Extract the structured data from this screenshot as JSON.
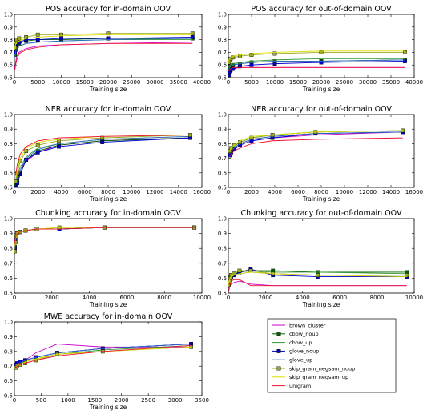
{
  "series_styles": [
    {
      "name": "brown_cluster",
      "color": "#cc00cc",
      "marker": "none"
    },
    {
      "name": "cbow_noup",
      "color": "#006600",
      "marker": "square"
    },
    {
      "name": "cbow_up",
      "color": "#339933",
      "marker": "none"
    },
    {
      "name": "glove_noup",
      "color": "#0000cc",
      "marker": "square"
    },
    {
      "name": "glove_up",
      "color": "#3366cc",
      "marker": "none"
    },
    {
      "name": "skip_gram_negsam_noup",
      "color": "#99aa22",
      "marker": "square"
    },
    {
      "name": "skip_gram_negsam_up",
      "color": "#dddd00",
      "marker": "none"
    },
    {
      "name": "unigram",
      "color": "#ee1133",
      "marker": "none"
    }
  ],
  "legend": {
    "placement": "bottom-right",
    "entries": [
      "brown_cluster",
      "cbow_noup",
      "cbow_up",
      "glove_noup",
      "glove_up",
      "skip_gram_negsam_noup",
      "skip_gram_negsam_up",
      "unigram"
    ]
  },
  "chart_data": [
    {
      "type": "line",
      "title": "POS accuracy for in-domain OOV",
      "xlabel": "Training size",
      "ylabel": "",
      "xlim": [
        0,
        40000
      ],
      "ylim": [
        0.5,
        1.0
      ],
      "xticks": [
        "0",
        "5000",
        "10000",
        "15000",
        "20000",
        "25000",
        "30000",
        "35000",
        "40000"
      ],
      "yticks": [
        "0.5",
        "0.6",
        "0.7",
        "0.8",
        "0.9",
        "1.0"
      ],
      "x": [
        100,
        250,
        500,
        1000,
        2500,
        5000,
        10000,
        20000,
        38000
      ],
      "series": [
        {
          "name": "brown_cluster",
          "values": [
            0.57,
            0.62,
            0.67,
            0.7,
            0.73,
            0.75,
            0.76,
            0.77,
            0.78
          ]
        },
        {
          "name": "cbow_noup",
          "values": [
            0.68,
            0.72,
            0.75,
            0.77,
            0.79,
            0.8,
            0.8,
            0.81,
            0.81
          ]
        },
        {
          "name": "cbow_up",
          "values": [
            0.66,
            0.7,
            0.73,
            0.75,
            0.77,
            0.78,
            0.79,
            0.8,
            0.8
          ]
        },
        {
          "name": "glove_noup",
          "values": [
            0.7,
            0.74,
            0.77,
            0.78,
            0.8,
            0.8,
            0.81,
            0.81,
            0.82
          ]
        },
        {
          "name": "glove_up",
          "values": [
            0.66,
            0.7,
            0.73,
            0.75,
            0.77,
            0.78,
            0.79,
            0.8,
            0.81
          ]
        },
        {
          "name": "skip_gram_negsam_noup",
          "values": [
            0.74,
            0.78,
            0.8,
            0.81,
            0.82,
            0.84,
            0.84,
            0.85,
            0.85
          ]
        },
        {
          "name": "skip_gram_negsam_up",
          "values": [
            0.72,
            0.76,
            0.78,
            0.79,
            0.81,
            0.82,
            0.83,
            0.84,
            0.84
          ]
        },
        {
          "name": "unigram",
          "values": [
            0.56,
            0.6,
            0.64,
            0.69,
            0.72,
            0.74,
            0.76,
            0.77,
            0.77
          ]
        }
      ]
    },
    {
      "type": "line",
      "title": "POS accuracy for out-of-domain OOV",
      "xlabel": "Training size",
      "ylabel": "",
      "xlim": [
        0,
        40000
      ],
      "ylim": [
        0.5,
        1.0
      ],
      "xticks": [
        "0",
        "5000",
        "10000",
        "15000",
        "20000",
        "25000",
        "30000",
        "35000",
        "40000"
      ],
      "yticks": [
        "0.5",
        "0.6",
        "0.7",
        "0.8",
        "0.9",
        "1.0"
      ],
      "x": [
        100,
        250,
        500,
        1000,
        2500,
        5000,
        10000,
        20000,
        38000
      ],
      "series": [
        {
          "name": "brown_cluster",
          "values": [
            0.54,
            0.55,
            0.56,
            0.57,
            0.58,
            0.58,
            0.58,
            0.58,
            0.58
          ]
        },
        {
          "name": "cbow_noup",
          "values": [
            0.57,
            0.58,
            0.59,
            0.6,
            0.61,
            0.62,
            0.63,
            0.63,
            0.64
          ]
        },
        {
          "name": "cbow_up",
          "values": [
            0.58,
            0.59,
            0.6,
            0.61,
            0.62,
            0.63,
            0.64,
            0.65,
            0.65
          ]
        },
        {
          "name": "glove_noup",
          "values": [
            0.52,
            0.55,
            0.56,
            0.57,
            0.59,
            0.6,
            0.61,
            0.62,
            0.63
          ]
        },
        {
          "name": "glove_up",
          "values": [
            0.56,
            0.58,
            0.59,
            0.6,
            0.61,
            0.62,
            0.63,
            0.63,
            0.64
          ]
        },
        {
          "name": "skip_gram_negsam_noup",
          "values": [
            0.62,
            0.64,
            0.65,
            0.66,
            0.67,
            0.68,
            0.69,
            0.7,
            0.7
          ]
        },
        {
          "name": "skip_gram_negsam_up",
          "values": [
            0.63,
            0.65,
            0.66,
            0.67,
            0.68,
            0.69,
            0.7,
            0.71,
            0.71
          ]
        },
        {
          "name": "unigram",
          "values": [
            0.55,
            0.56,
            0.57,
            0.58,
            0.58,
            0.58,
            0.58,
            0.58,
            0.58
          ]
        }
      ]
    },
    {
      "type": "line",
      "title": "NER accuracy for in-domain OOV",
      "xlabel": "Training size",
      "ylabel": "",
      "xlim": [
        0,
        16000
      ],
      "ylim": [
        0.5,
        1.0
      ],
      "xticks": [
        "0",
        "2000",
        "4000",
        "6000",
        "8000",
        "10000",
        "12000",
        "14000",
        "16000"
      ],
      "yticks": [
        "0.5",
        "0.6",
        "0.7",
        "0.8",
        "0.9",
        "1.0"
      ],
      "x": [
        100,
        250,
        500,
        1000,
        2000,
        3800,
        7500,
        15000
      ],
      "series": [
        {
          "name": "brown_cluster",
          "values": [
            0.54,
            0.58,
            0.62,
            0.68,
            0.74,
            0.79,
            0.82,
            0.84
          ]
        },
        {
          "name": "cbow_noup",
          "values": [
            0.52,
            0.55,
            0.6,
            0.69,
            0.75,
            0.79,
            0.82,
            0.84
          ]
        },
        {
          "name": "cbow_up",
          "values": [
            0.55,
            0.59,
            0.64,
            0.71,
            0.77,
            0.8,
            0.83,
            0.85
          ]
        },
        {
          "name": "glove_noup",
          "values": [
            0.5,
            0.53,
            0.59,
            0.69,
            0.74,
            0.78,
            0.81,
            0.84
          ]
        },
        {
          "name": "glove_up",
          "values": [
            0.53,
            0.57,
            0.62,
            0.7,
            0.76,
            0.8,
            0.83,
            0.85
          ]
        },
        {
          "name": "skip_gram_negsam_noup",
          "values": [
            0.54,
            0.6,
            0.68,
            0.75,
            0.79,
            0.82,
            0.84,
            0.86
          ]
        },
        {
          "name": "skip_gram_negsam_up",
          "values": [
            0.56,
            0.62,
            0.7,
            0.77,
            0.81,
            0.83,
            0.85,
            0.86
          ]
        },
        {
          "name": "unigram",
          "values": [
            0.58,
            0.66,
            0.73,
            0.78,
            0.82,
            0.84,
            0.85,
            0.86
          ]
        }
      ]
    },
    {
      "type": "line",
      "title": "NER accuracy for out-of-domain OOV",
      "xlabel": "Training size",
      "ylabel": "",
      "xlim": [
        0,
        16000
      ],
      "ylim": [
        0.5,
        1.0
      ],
      "xticks": [
        "0",
        "2000",
        "4000",
        "6000",
        "8000",
        "10000",
        "12000",
        "14000",
        "16000"
      ],
      "yticks": [
        "0.5",
        "0.6",
        "0.7",
        "0.8",
        "0.9",
        "1.0"
      ],
      "x": [
        100,
        250,
        500,
        1000,
        2000,
        3800,
        7500,
        15000
      ],
      "series": [
        {
          "name": "brown_cluster",
          "values": [
            0.72,
            0.74,
            0.76,
            0.79,
            0.82,
            0.84,
            0.86,
            0.88
          ]
        },
        {
          "name": "cbow_noup",
          "values": [
            0.73,
            0.75,
            0.77,
            0.8,
            0.83,
            0.85,
            0.87,
            0.88
          ]
        },
        {
          "name": "cbow_up",
          "values": [
            0.74,
            0.76,
            0.78,
            0.81,
            0.84,
            0.86,
            0.88,
            0.89
          ]
        },
        {
          "name": "glove_noup",
          "values": [
            0.72,
            0.74,
            0.76,
            0.79,
            0.82,
            0.84,
            0.87,
            0.88
          ]
        },
        {
          "name": "glove_up",
          "values": [
            0.73,
            0.75,
            0.77,
            0.8,
            0.83,
            0.85,
            0.87,
            0.88
          ]
        },
        {
          "name": "skip_gram_negsam_noup",
          "values": [
            0.75,
            0.77,
            0.79,
            0.81,
            0.84,
            0.86,
            0.88,
            0.89
          ]
        },
        {
          "name": "skip_gram_negsam_up",
          "values": [
            0.75,
            0.77,
            0.79,
            0.82,
            0.85,
            0.86,
            0.88,
            0.89
          ]
        },
        {
          "name": "unigram",
          "values": [
            0.71,
            0.73,
            0.75,
            0.77,
            0.8,
            0.82,
            0.83,
            0.84
          ]
        }
      ]
    },
    {
      "type": "line",
      "title": "Chunking accuracy for in-domain OOV",
      "xlabel": "Training size",
      "ylabel": "",
      "xlim": [
        0,
        10000
      ],
      "ylim": [
        0.5,
        1.0
      ],
      "xticks": [
        "0",
        "2000",
        "4000",
        "6000",
        "8000",
        "10000"
      ],
      "yticks": [
        "0.5",
        "0.6",
        "0.7",
        "0.8",
        "0.9",
        "1.0"
      ],
      "x": [
        20,
        50,
        100,
        150,
        300,
        600,
        1200,
        2400,
        4800,
        9600
      ],
      "series": [
        {
          "name": "brown_cluster",
          "values": [
            0.8,
            0.85,
            0.88,
            0.9,
            0.91,
            0.92,
            0.93,
            0.93,
            0.94,
            0.94
          ]
        },
        {
          "name": "cbow_noup",
          "values": [
            0.81,
            0.85,
            0.88,
            0.9,
            0.91,
            0.92,
            0.93,
            0.93,
            0.94,
            0.94
          ]
        },
        {
          "name": "cbow_up",
          "values": [
            0.82,
            0.86,
            0.89,
            0.9,
            0.91,
            0.92,
            0.93,
            0.93,
            0.94,
            0.94
          ]
        },
        {
          "name": "glove_noup",
          "values": [
            0.8,
            0.85,
            0.88,
            0.9,
            0.91,
            0.92,
            0.93,
            0.93,
            0.94,
            0.94
          ]
        },
        {
          "name": "glove_up",
          "values": [
            0.81,
            0.85,
            0.88,
            0.9,
            0.91,
            0.92,
            0.93,
            0.93,
            0.94,
            0.94
          ]
        },
        {
          "name": "skip_gram_negsam_noup",
          "values": [
            0.78,
            0.84,
            0.88,
            0.9,
            0.91,
            0.92,
            0.93,
            0.94,
            0.94,
            0.94
          ]
        },
        {
          "name": "skip_gram_negsam_up",
          "values": [
            0.82,
            0.86,
            0.89,
            0.9,
            0.91,
            0.92,
            0.93,
            0.94,
            0.94,
            0.94
          ]
        },
        {
          "name": "unigram",
          "values": [
            0.83,
            0.87,
            0.89,
            0.9,
            0.91,
            0.92,
            0.93,
            0.93,
            0.94,
            0.94
          ]
        }
      ]
    },
    {
      "type": "line",
      "title": "Chunking accuracy for out-of-domain OOV",
      "xlabel": "Training size",
      "ylabel": "",
      "xlim": [
        0,
        10000
      ],
      "ylim": [
        0.5,
        1.0
      ],
      "xticks": [
        "0",
        "2000",
        "4000",
        "6000",
        "8000",
        "10000"
      ],
      "yticks": [
        "0.5",
        "0.6",
        "0.7",
        "0.8",
        "0.9",
        "1.0"
      ],
      "x": [
        20,
        50,
        100,
        150,
        300,
        600,
        1200,
        2400,
        4800,
        9600
      ],
      "series": [
        {
          "name": "brown_cluster",
          "values": [
            0.53,
            0.54,
            0.55,
            0.56,
            0.57,
            0.58,
            0.56,
            0.55,
            0.55,
            0.55
          ]
        },
        {
          "name": "cbow_noup",
          "values": [
            0.57,
            0.59,
            0.61,
            0.62,
            0.63,
            0.64,
            0.65,
            0.65,
            0.64,
            0.64
          ]
        },
        {
          "name": "cbow_up",
          "values": [
            0.58,
            0.6,
            0.61,
            0.62,
            0.63,
            0.64,
            0.65,
            0.64,
            0.64,
            0.63
          ]
        },
        {
          "name": "glove_noup",
          "values": [
            0.56,
            0.58,
            0.6,
            0.61,
            0.62,
            0.64,
            0.66,
            0.62,
            0.61,
            0.61
          ]
        },
        {
          "name": "glove_up",
          "values": [
            0.57,
            0.59,
            0.6,
            0.61,
            0.62,
            0.63,
            0.64,
            0.63,
            0.62,
            0.62
          ]
        },
        {
          "name": "skip_gram_negsam_noup",
          "values": [
            0.55,
            0.58,
            0.6,
            0.62,
            0.63,
            0.65,
            0.65,
            0.63,
            0.62,
            0.62
          ]
        },
        {
          "name": "skip_gram_negsam_up",
          "values": [
            0.56,
            0.58,
            0.6,
            0.61,
            0.62,
            0.63,
            0.64,
            0.63,
            0.62,
            0.61
          ]
        },
        {
          "name": "unigram",
          "values": [
            0.51,
            0.53,
            0.56,
            0.58,
            0.59,
            0.59,
            0.55,
            0.55,
            0.55,
            0.55
          ]
        }
      ]
    },
    {
      "type": "line",
      "title": "MWE accuracy for in-domain OOV",
      "xlabel": "Training size",
      "ylabel": "",
      "xlim": [
        0,
        3500
      ],
      "ylim": [
        0.5,
        1.0
      ],
      "xticks": [
        "0",
        "500",
        "1000",
        "1500",
        "2000",
        "2500",
        "3000",
        "3500"
      ],
      "yticks": [
        "0.5",
        "0.6",
        "0.7",
        "0.8",
        "0.9",
        "1.0"
      ],
      "x": [
        25,
        50,
        100,
        200,
        400,
        800,
        1650,
        3300
      ],
      "series": [
        {
          "name": "brown_cluster",
          "values": [
            0.7,
            0.71,
            0.72,
            0.74,
            0.79,
            0.85,
            0.83,
            0.83
          ]
        },
        {
          "name": "cbow_noup",
          "values": [
            0.71,
            0.71,
            0.72,
            0.74,
            0.76,
            0.79,
            0.82,
            0.85
          ]
        },
        {
          "name": "cbow_up",
          "values": [
            0.7,
            0.71,
            0.72,
            0.73,
            0.75,
            0.78,
            0.81,
            0.84
          ]
        },
        {
          "name": "glove_noup",
          "values": [
            0.71,
            0.72,
            0.73,
            0.74,
            0.76,
            0.79,
            0.82,
            0.85
          ]
        },
        {
          "name": "glove_up",
          "values": [
            0.7,
            0.71,
            0.72,
            0.74,
            0.76,
            0.79,
            0.82,
            0.85
          ]
        },
        {
          "name": "skip_gram_negsam_noup",
          "values": [
            0.69,
            0.7,
            0.71,
            0.72,
            0.74,
            0.78,
            0.8,
            0.83
          ]
        },
        {
          "name": "skip_gram_negsam_up",
          "values": [
            0.69,
            0.7,
            0.71,
            0.73,
            0.75,
            0.78,
            0.8,
            0.83
          ]
        },
        {
          "name": "unigram",
          "values": [
            0.69,
            0.7,
            0.71,
            0.72,
            0.74,
            0.77,
            0.8,
            0.84
          ]
        }
      ]
    }
  ]
}
